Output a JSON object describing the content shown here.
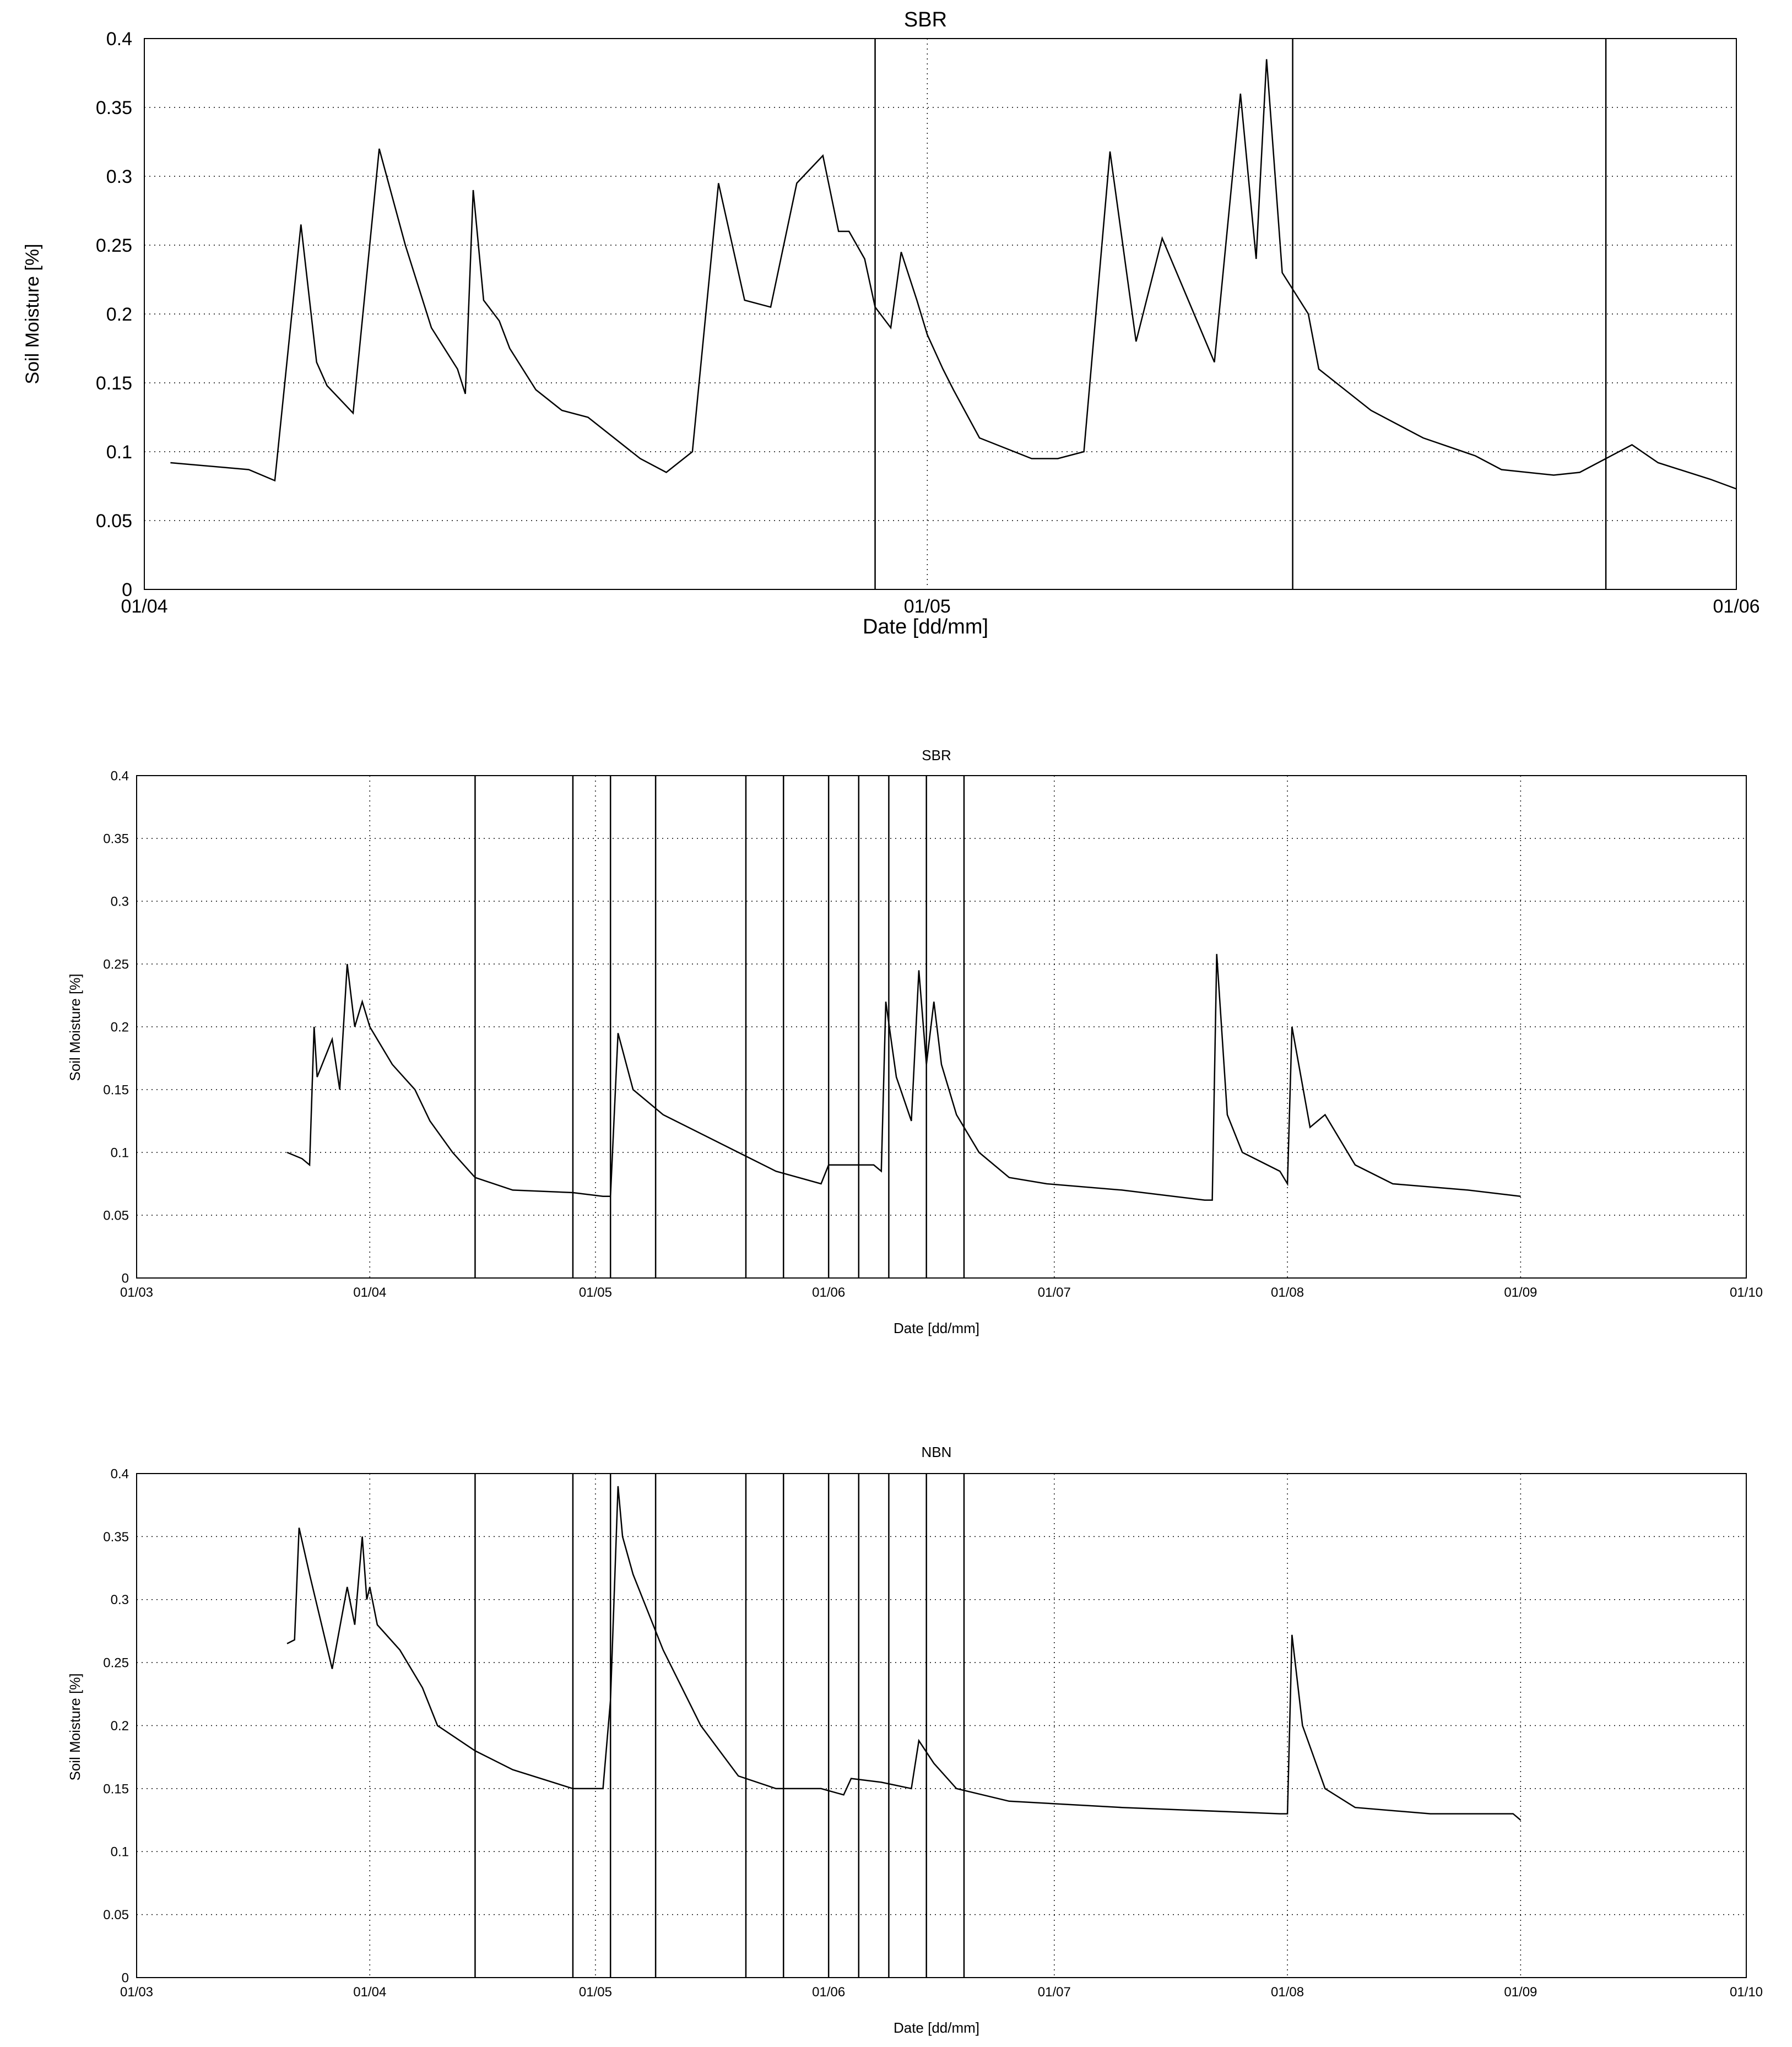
{
  "colors": {
    "line": "#000000",
    "grid": "#000000",
    "background": "#ffffff"
  },
  "chart_data": [
    {
      "type": "line",
      "title": "SBR",
      "xlabel": "Date [dd/mm]",
      "ylabel": "Soil Moisture [%]",
      "xlim": [
        "01/04",
        "01/06"
      ],
      "ylim": [
        0,
        0.4
      ],
      "grid": true,
      "x_ticks": [
        "01/04",
        "01/05",
        "01/06"
      ],
      "y_ticks": [
        "0",
        "0.05",
        "0.1",
        "0.15",
        "0.2",
        "0.25",
        "0.3",
        "0.35",
        "0.4"
      ],
      "event_lines": [
        "29/04",
        "15/05",
        "27/05"
      ],
      "series": [
        {
          "x": [
            "02/04",
            "05/04",
            "06/04",
            "07/04",
            "07/04",
            "08/04",
            "09/04",
            "10/04",
            "11/04",
            "12/04",
            "13/04",
            "13/04",
            "13/04",
            "14/04",
            "14/04",
            "15/04",
            "16/04",
            "17/04",
            "18/04",
            "19/04",
            "20/04",
            "21/04",
            "22/04",
            "23/04",
            "24/04",
            "25/04",
            "26/04",
            "27/04",
            "27/04",
            "28/04",
            "28/04",
            "29/04",
            "29/04",
            "30/04",
            "30/04",
            "01/05",
            "01/05",
            "02/05",
            "03/05",
            "05/05",
            "06/05",
            "07/05",
            "08/05",
            "09/05",
            "10/05",
            "12/05",
            "13/05",
            "13/05",
            "14/05",
            "14/05",
            "15/05",
            "15/05",
            "16/05",
            "18/05",
            "20/05",
            "22/05",
            "23/05",
            "25/05",
            "26/05",
            "27/05",
            "28/05",
            "29/05",
            "31/05",
            "01/06"
          ],
          "y": [
            0.092,
            0.087,
            0.079,
            0.265,
            0.165,
            0.148,
            0.128,
            0.32,
            0.25,
            0.19,
            0.16,
            0.142,
            0.29,
            0.21,
            0.195,
            0.175,
            0.145,
            0.13,
            0.125,
            0.11,
            0.095,
            0.085,
            0.1,
            0.295,
            0.21,
            0.205,
            0.295,
            0.315,
            0.26,
            0.26,
            0.24,
            0.205,
            0.19,
            0.245,
            0.21,
            0.185,
            0.16,
            0.145,
            0.11,
            0.095,
            0.095,
            0.1,
            0.318,
            0.18,
            0.255,
            0.165,
            0.36,
            0.24,
            0.385,
            0.23,
            0.218,
            0.2,
            0.16,
            0.13,
            0.11,
            0.097,
            0.087,
            0.083,
            0.085,
            0.095,
            0.105,
            0.092,
            0.08,
            0.073
          ]
        }
      ]
    },
    {
      "type": "line",
      "title": "SBR",
      "xlabel": "Date [dd/mm]",
      "ylabel": "Soil Moisture [%]",
      "xlim": [
        "01/03",
        "01/10"
      ],
      "ylim": [
        0,
        0.4
      ],
      "grid": true,
      "x_ticks": [
        "01/03",
        "01/04",
        "01/05",
        "01/06",
        "01/07",
        "01/08",
        "01/09",
        "01/10"
      ],
      "y_ticks": [
        "0",
        "0.05",
        "0.1",
        "0.15",
        "0.2",
        "0.25",
        "0.3",
        "0.35",
        "0.4"
      ],
      "event_lines": [
        "15/04",
        "28/04",
        "03/05",
        "09/05",
        "21/05",
        "26/05",
        "01/06",
        "05/06",
        "09/06",
        "14/06",
        "19/06"
      ],
      "series": [
        {
          "x": [
            "21/03",
            "23/03",
            "24/03",
            "24/03",
            "25/03",
            "27/03",
            "28/03",
            "29/03",
            "30/03",
            "31/03",
            "01/04",
            "02/04",
            "04/04",
            "07/04",
            "09/04",
            "12/04",
            "15/04",
            "20/04",
            "28/04",
            "02/05",
            "03/05",
            "04/05",
            "06/05",
            "10/05",
            "20/05",
            "25/05",
            "31/05",
            "01/06",
            "07/06",
            "08/06",
            "08/06",
            "10/06",
            "12/06",
            "13/06",
            "14/06",
            "15/06",
            "16/06",
            "18/06",
            "21/06",
            "25/06",
            "30/06",
            "10/07",
            "21/07",
            "22/07",
            "22/07",
            "24/07",
            "26/07",
            "31/07",
            "01/08",
            "01/08",
            "04/08",
            "06/08",
            "10/08",
            "15/08",
            "25/08",
            "01/09"
          ],
          "y": [
            0.1,
            0.095,
            0.09,
            0.2,
            0.16,
            0.19,
            0.15,
            0.25,
            0.2,
            0.22,
            0.2,
            0.19,
            0.17,
            0.15,
            0.125,
            0.1,
            0.08,
            0.07,
            0.068,
            0.065,
            0.065,
            0.195,
            0.15,
            0.13,
            0.1,
            0.085,
            0.075,
            0.09,
            0.09,
            0.085,
            0.22,
            0.16,
            0.125,
            0.245,
            0.17,
            0.22,
            0.17,
            0.13,
            0.1,
            0.08,
            0.075,
            0.07,
            0.062,
            0.062,
            0.258,
            0.13,
            0.1,
            0.085,
            0.075,
            0.2,
            0.12,
            0.13,
            0.09,
            0.075,
            0.07,
            0.065
          ]
        }
      ]
    },
    {
      "type": "line",
      "title": "NBN",
      "xlabel": "Date [dd/mm]",
      "ylabel": "Soil Moisture [%]",
      "xlim": [
        "01/03",
        "01/10"
      ],
      "ylim": [
        0,
        0.4
      ],
      "grid": true,
      "x_ticks": [
        "01/03",
        "01/04",
        "01/05",
        "01/06",
        "01/07",
        "01/08",
        "01/09",
        "01/10"
      ],
      "y_ticks": [
        "0",
        "0.05",
        "0.1",
        "0.15",
        "0.2",
        "0.25",
        "0.3",
        "0.35",
        "0.4"
      ],
      "event_lines": [
        "15/04",
        "28/04",
        "03/05",
        "09/05",
        "21/05",
        "26/05",
        "01/06",
        "05/06",
        "09/06",
        "14/06",
        "19/06"
      ],
      "series": [
        {
          "x": [
            "21/03",
            "22/03",
            "22/03",
            "24/03",
            "27/03",
            "29/03",
            "30/03",
            "31/03",
            "31/03",
            "01/04",
            "02/04",
            "05/04",
            "08/04",
            "10/04",
            "15/04",
            "20/04",
            "28/04",
            "02/05",
            "03/05",
            "04/05",
            "04/05",
            "06/05",
            "10/05",
            "15/05",
            "20/05",
            "25/05",
            "31/05",
            "03/06",
            "04/06",
            "08/06",
            "12/06",
            "13/06",
            "15/06",
            "18/06",
            "25/06",
            "10/07",
            "31/07",
            "01/08",
            "01/08",
            "03/08",
            "06/08",
            "10/08",
            "20/08",
            "31/08",
            "01/09"
          ],
          "y": [
            0.265,
            0.268,
            0.357,
            0.32,
            0.245,
            0.31,
            0.28,
            0.35,
            0.3,
            0.31,
            0.28,
            0.26,
            0.23,
            0.2,
            0.18,
            0.165,
            0.15,
            0.15,
            0.22,
            0.39,
            0.35,
            0.32,
            0.26,
            0.2,
            0.16,
            0.15,
            0.15,
            0.145,
            0.158,
            0.155,
            0.15,
            0.188,
            0.17,
            0.15,
            0.14,
            0.135,
            0.13,
            0.13,
            0.272,
            0.2,
            0.15,
            0.135,
            0.13,
            0.13,
            0.125
          ]
        }
      ]
    }
  ]
}
